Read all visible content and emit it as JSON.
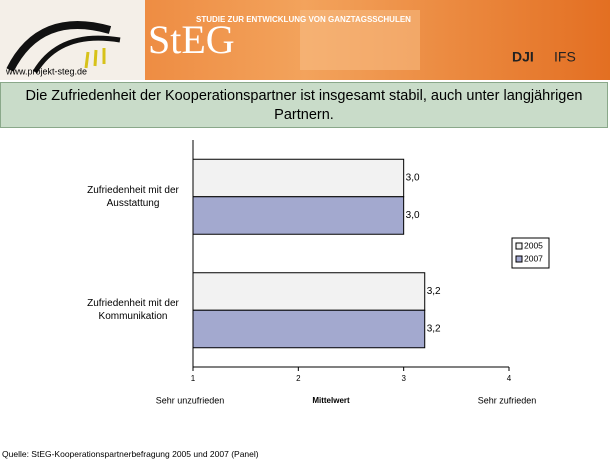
{
  "header": {
    "url": "www.projekt-steg.de",
    "logo": "StEG",
    "subtitle": "STUDIE ZUR ENTWICKLUNG VON GANZTAGSSCHULEN",
    "partner1": "DJI",
    "partner2": "IFS"
  },
  "chart_data": {
    "type": "bar",
    "orientation": "horizontal",
    "title": "Die Zufriedenheit der Kooperationspartner ist insgesamt stabil, auch unter langjährigen Partnern.",
    "categories": [
      "Zufriedenheit mit der Ausstattung",
      "Zufriedenheit mit der Kommunikation"
    ],
    "series": [
      {
        "name": "2005",
        "color": "#f2f2f2",
        "values": [
          3.0,
          3.2
        ],
        "value_labels": [
          "3,0",
          "3,2"
        ]
      },
      {
        "name": "2007",
        "color": "#a3a9cf",
        "values": [
          3.0,
          3.2
        ],
        "value_labels": [
          "3,0",
          "3,2"
        ]
      }
    ],
    "xlim": [
      1,
      4
    ],
    "xticks": [
      1,
      2,
      3,
      4
    ],
    "xlabel": "Mittelwert",
    "annotations": [
      "Sehr unzufrieden",
      "Sehr zufrieden"
    ],
    "legend": "right"
  },
  "source": "Quelle: StEG-Kooperationspartnerbefragung 2005 und 2007 (Panel)"
}
